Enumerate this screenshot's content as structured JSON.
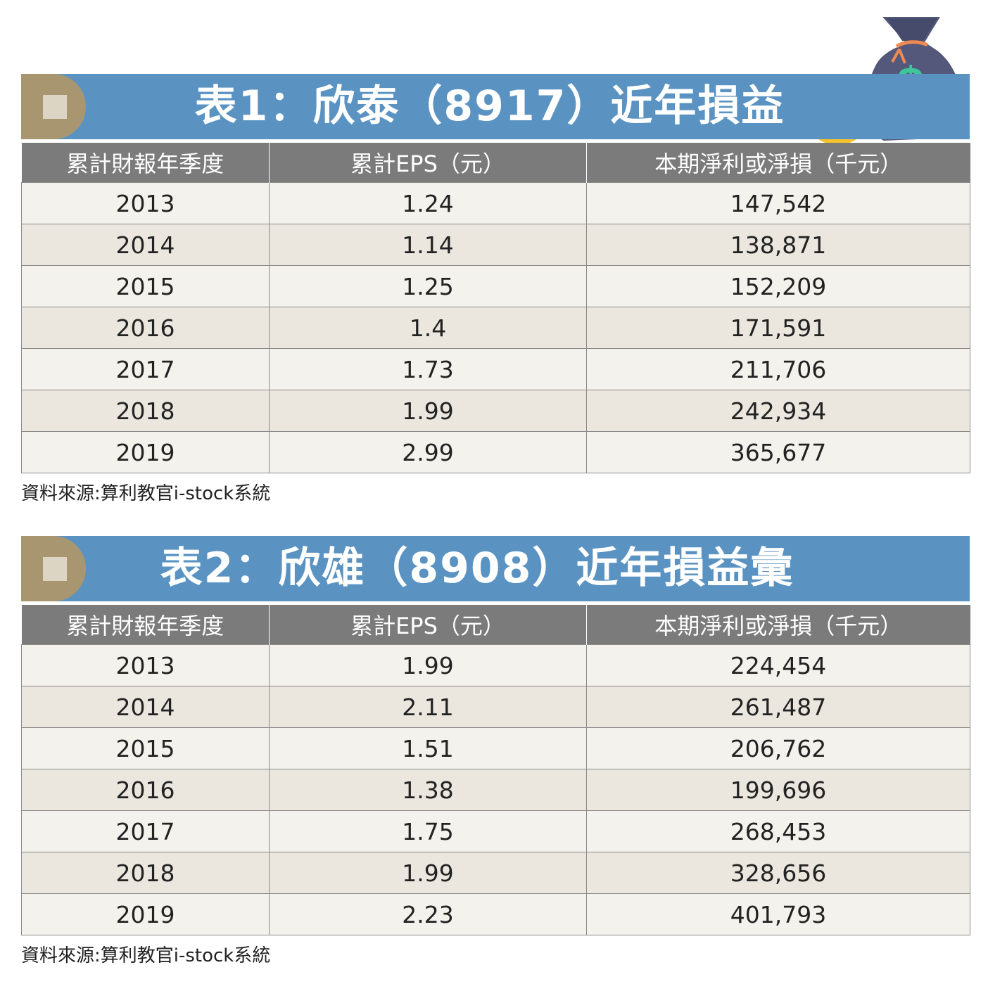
{
  "tables": [
    {
      "title": "表1：欣泰（8917）近年損益",
      "headers": [
        "累計財報年季度",
        "累計EPS（元）",
        "本期淨利或淨損（千元）"
      ],
      "rows": [
        [
          "2013",
          "1.24",
          "147,542"
        ],
        [
          "2014",
          "1.14",
          "138,871"
        ],
        [
          "2015",
          "1.25",
          "152,209"
        ],
        [
          "2016",
          "1.4",
          "171,591"
        ],
        [
          "2017",
          "1.73",
          "211,706"
        ],
        [
          "2018",
          "1.99",
          "242,934"
        ],
        [
          "2019",
          "2.99",
          "365,677"
        ]
      ],
      "source": "資料來源:算利教官i-stock系統"
    },
    {
      "title": "表2：欣雄（8908）近年損益彙",
      "headers": [
        "累計財報年季度",
        "累計EPS（元）",
        "本期淨利或淨損（千元）"
      ],
      "rows": [
        [
          "2013",
          "1.99",
          "224,454"
        ],
        [
          "2014",
          "2.11",
          "261,487"
        ],
        [
          "2015",
          "1.51",
          "206,762"
        ],
        [
          "2016",
          "1.38",
          "199,696"
        ],
        [
          "2017",
          "1.75",
          "268,453"
        ],
        [
          "2018",
          "1.99",
          "328,656"
        ],
        [
          "2019",
          "2.23",
          "401,793"
        ]
      ],
      "source": "資料來源:算利教官i-stock系統"
    }
  ],
  "icons": {
    "money_bag": "money-bag-icon",
    "coins": "coins-icon",
    "dollar_sign": "$"
  },
  "colors": {
    "title_bar": "#5a93c2",
    "title_tab": "#a89671",
    "header_bg": "#7b7b7b",
    "row_light": "#f4f2ec",
    "row_dark": "#ebe7df"
  }
}
